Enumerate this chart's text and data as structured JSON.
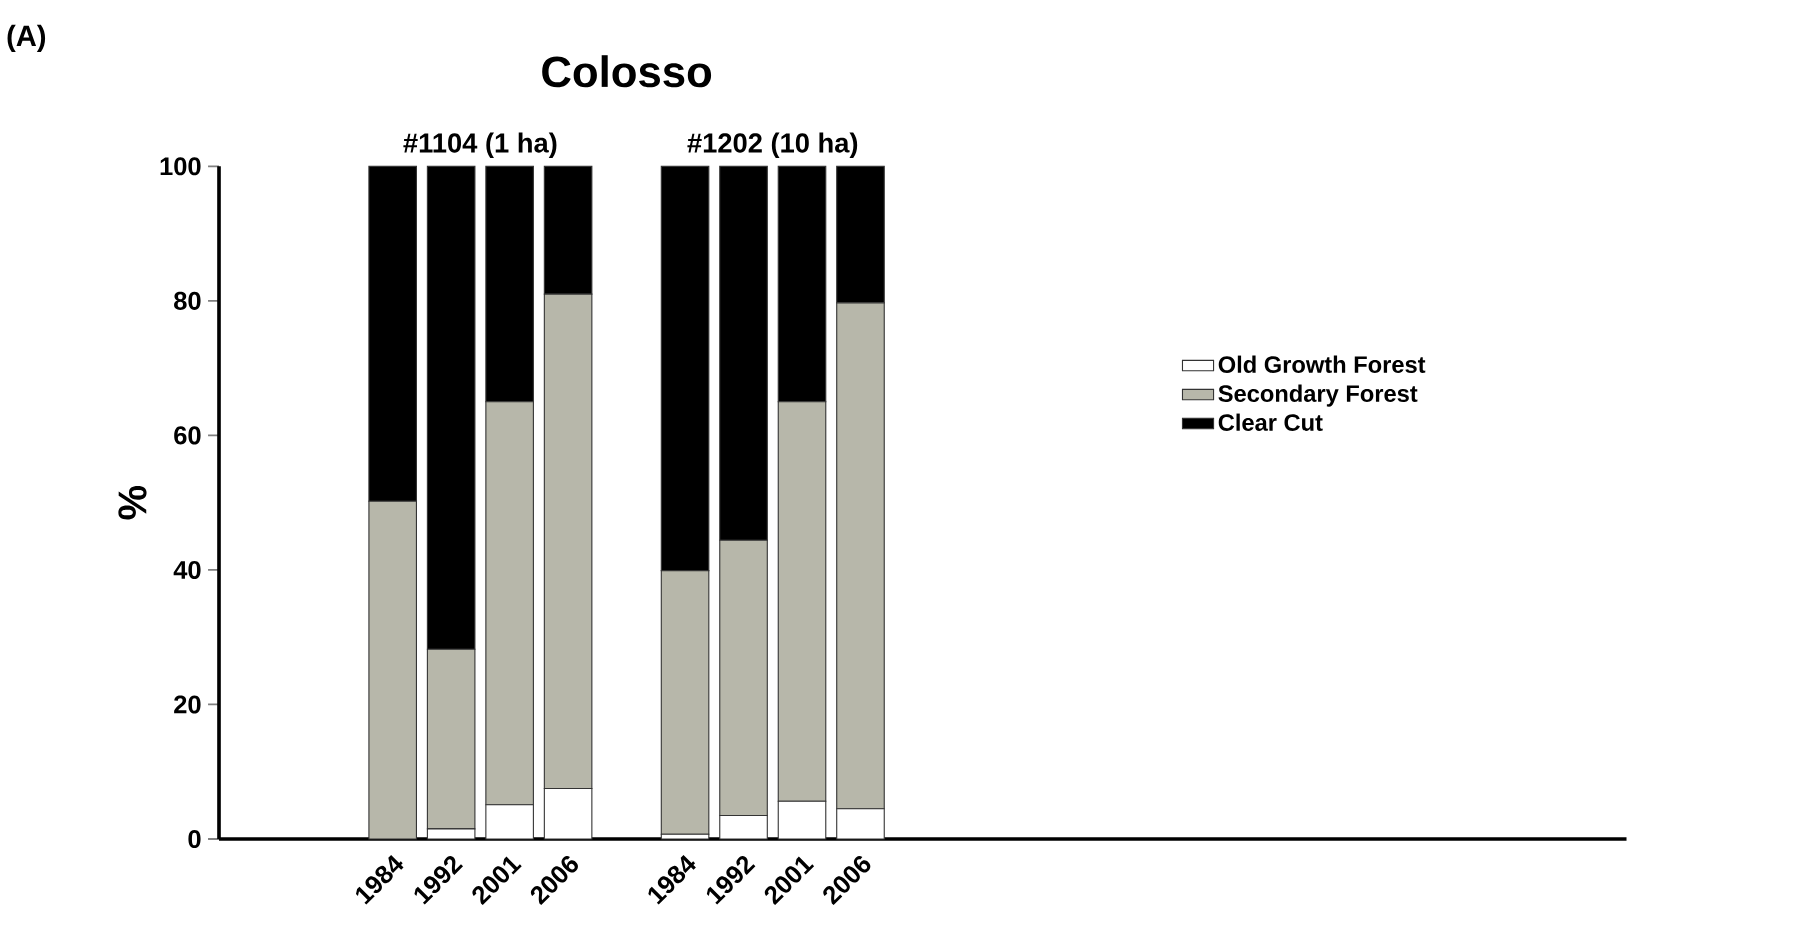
{
  "chart_data": {
    "type": "bar",
    "stacked": true,
    "title": "Colosso",
    "ylabel": "%",
    "annotations": [
      "(A)",
      "#1104 (1 ha)",
      "#1202 (10 ha)"
    ],
    "categories": [
      "1984",
      "1992",
      "2001",
      "2006",
      null,
      "1984",
      "1992",
      "2001",
      "2006"
    ],
    "series": [
      {
        "name": "Old Growth Forest",
        "color": "#ffffff",
        "values": [
          0,
          1.5,
          5.1,
          7.5,
          null,
          0.7,
          3.5,
          5.6,
          4.5
        ]
      },
      {
        "name": "Secondary Forest",
        "color": "#b7b7aa",
        "values": [
          50.2,
          26.7,
          59.9,
          73.5,
          null,
          39.2,
          40.9,
          59.4,
          75.2
        ]
      },
      {
        "name": "Clear Cut",
        "color": "#000000",
        "values": [
          49.8,
          71.8,
          35.0,
          19.0,
          null,
          60.1,
          55.6,
          35.0,
          20.3
        ]
      }
    ],
    "ylim": [
      0,
      100
    ],
    "yticks": [
      0,
      20,
      40,
      60,
      80,
      100
    ],
    "legend": "right"
  }
}
